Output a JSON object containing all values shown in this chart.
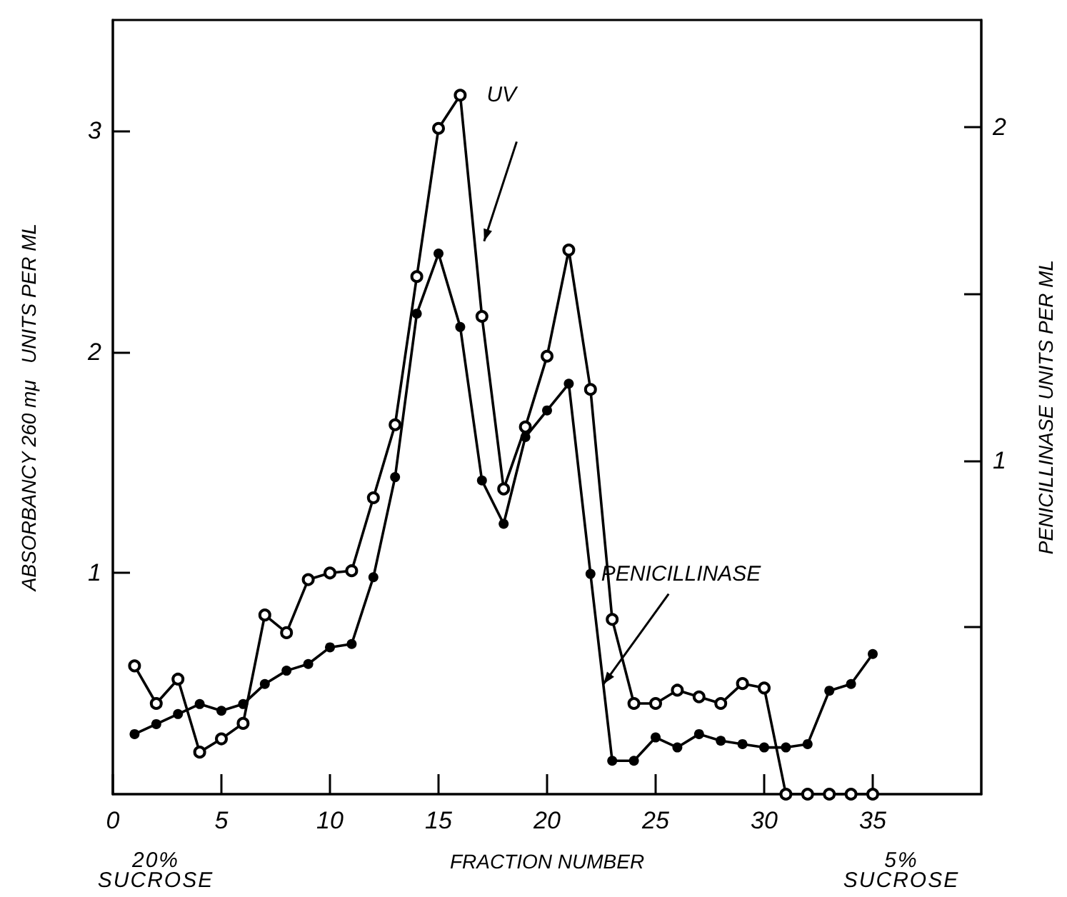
{
  "chart_data": {
    "type": "line",
    "xlabel": "FRACTION NUMBER",
    "ylabel": "ABSORBANCY 260 mμ   UNITS PER ML",
    "y2label": "PENICILLINASE UNITS PER ML",
    "x": [
      1,
      2,
      3,
      4,
      5,
      6,
      7,
      8,
      9,
      10,
      11,
      12,
      13,
      14,
      15,
      16,
      17,
      18,
      19,
      20,
      21,
      22,
      23,
      24,
      25,
      26,
      27,
      28,
      29,
      30,
      31,
      32,
      33,
      34,
      35
    ],
    "series": [
      {
        "name": "UV",
        "color": "#000000",
        "marker": "circle",
        "values": [
          0.58,
          0.41,
          0.52,
          0.19,
          0.25,
          0.32,
          0.81,
          0.73,
          0.97,
          1.0,
          1.01,
          1.34,
          1.67,
          2.34,
          3.01,
          3.16,
          2.16,
          1.38,
          1.66,
          1.98,
          2.46,
          1.83,
          0.79,
          0.41,
          0.41,
          0.47,
          0.44,
          0.41,
          0.5,
          0.48,
          0.0,
          0.0,
          0.0,
          0.0,
          0.0
        ]
      },
      {
        "name": "PENICILLINASE",
        "color": "#000000",
        "marker": "circle",
        "axis": "y2",
        "values": [
          0.18,
          0.21,
          0.24,
          0.27,
          0.25,
          0.27,
          0.33,
          0.37,
          0.39,
          0.44,
          0.45,
          0.65,
          0.95,
          1.44,
          1.62,
          1.4,
          0.94,
          0.81,
          1.07,
          1.15,
          1.23,
          0.66,
          0.1,
          0.1,
          0.17,
          0.14,
          0.18,
          0.16,
          0.15,
          0.14,
          0.14,
          0.15,
          0.31,
          0.33,
          0.42
        ]
      }
    ],
    "xlim": [
      0,
      40
    ],
    "xticks": [
      0,
      5,
      10,
      15,
      20,
      25,
      30,
      35
    ],
    "ylim": [
      0,
      3.5
    ],
    "yticks": [
      1,
      2,
      3
    ],
    "y2lim": [
      0,
      2.32
    ],
    "y2ticks": [
      {
        "value": 0.5,
        "label": null
      },
      1,
      {
        "value": 1.5,
        "label": null
      },
      2
    ],
    "annotations": [
      "20%\nSUCROSE",
      "5%\nSUCROSE"
    ],
    "grid": false,
    "legend": false
  }
}
